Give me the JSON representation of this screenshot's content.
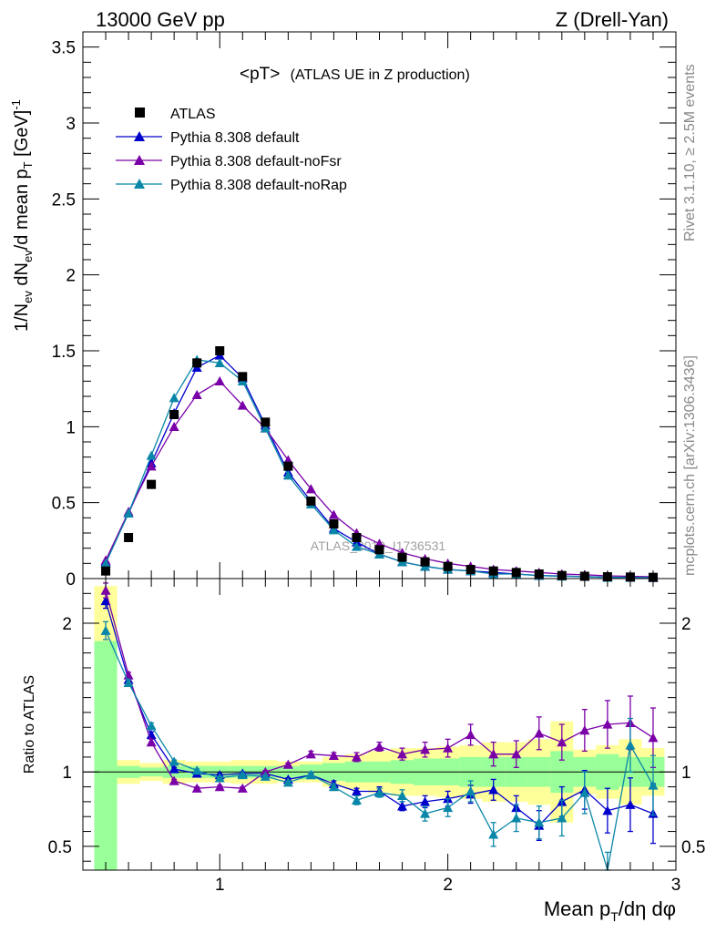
{
  "header": {
    "left": "13000 GeV pp",
    "right": "Z (Drell-Yan)"
  },
  "side": {
    "rivet": "Rivet 3.1.10, ≥ 2.5M events",
    "mcplots": "mcplots.cern.ch [arXiv:1306.3436]"
  },
  "watermark": "ATLAS_2019_I1736531",
  "colors": {
    "data": "#000000",
    "default": "#0000cc",
    "noFsr": "#7a00a8",
    "noRap": "#0a87a8",
    "band_stat": "#99ff99",
    "band_total": "#ffff99"
  },
  "chart_data": [
    {
      "type": "scatter",
      "panel": "main",
      "title": "<pT>",
      "title_suffix": "(ATLAS UE in Z production)",
      "ylabel": "1/N_ev dN_ev/d mean p_T [GeV]^-1",
      "xlim": [
        0.4,
        3.0
      ],
      "ylim": [
        0,
        3.6
      ],
      "yticks": [
        0,
        0.5,
        1,
        1.5,
        2,
        2.5,
        3,
        3.5
      ],
      "ytick_labels": [
        "0",
        "0.5",
        "1",
        "1.5",
        "2",
        "2.5",
        "3",
        "3.5"
      ],
      "x": [
        0.5,
        0.6,
        0.7,
        0.8,
        0.9,
        1.0,
        1.1,
        1.2,
        1.3,
        1.4,
        1.5,
        1.6,
        1.7,
        1.8,
        1.9,
        2.0,
        2.1,
        2.2,
        2.3,
        2.4,
        2.5,
        2.6,
        2.7,
        2.8,
        2.9
      ],
      "legend": {
        "data": "ATLAS",
        "default": "Pythia 8.308 default",
        "noFsr": "Pythia 8.308 default-noFsr",
        "noRap": "Pythia 8.308 default-noRap"
      },
      "series": [
        {
          "key": "data",
          "name": "ATLAS",
          "values": [
            0.05,
            0.27,
            0.62,
            1.08,
            1.42,
            1.5,
            1.33,
            1.03,
            0.74,
            0.51,
            0.36,
            0.27,
            0.19,
            0.14,
            0.11,
            0.08,
            0.06,
            0.05,
            0.04,
            0.03,
            0.02,
            0.015,
            0.012,
            0.01,
            0.008
          ]
        },
        {
          "key": "default",
          "name": "Pythia 8.308 default",
          "values": [
            0.11,
            0.43,
            0.76,
            1.09,
            1.39,
            1.47,
            1.32,
            1.01,
            0.7,
            0.51,
            0.33,
            0.24,
            0.16,
            0.11,
            0.08,
            0.06,
            0.05,
            0.04,
            0.03,
            0.02,
            0.017,
            0.013,
            0.009,
            0.008,
            0.006
          ]
        },
        {
          "key": "noFsr",
          "name": "Pythia 8.308 default-noFsr",
          "values": [
            0.12,
            0.44,
            0.74,
            1.0,
            1.21,
            1.3,
            1.14,
            0.99,
            0.78,
            0.59,
            0.42,
            0.3,
            0.23,
            0.17,
            0.13,
            0.1,
            0.08,
            0.06,
            0.05,
            0.04,
            0.03,
            0.025,
            0.018,
            0.015,
            0.012
          ]
        },
        {
          "key": "noRap",
          "name": "Pythia 8.308 default-noRap",
          "values": [
            0.1,
            0.43,
            0.81,
            1.19,
            1.44,
            1.42,
            1.3,
            0.99,
            0.68,
            0.49,
            0.32,
            0.21,
            0.16,
            0.11,
            0.08,
            0.06,
            0.05,
            0.03,
            0.03,
            0.02,
            0.015,
            0.013,
            0.007,
            0.008,
            0.006
          ]
        }
      ]
    },
    {
      "type": "scatter",
      "panel": "ratio",
      "ylabel": "Ratio to ATLAS",
      "xlabel": "Mean p_T/dη dφ",
      "xlim": [
        0.4,
        3.0
      ],
      "ylim": [
        0.34,
        2.3
      ],
      "xticks": [
        1,
        2,
        3
      ],
      "xtick_labels": [
        "1",
        "2",
        "3"
      ],
      "yticks": [
        0.5,
        1,
        2
      ],
      "ytick_labels": [
        "0.5",
        "1",
        "2"
      ],
      "x": [
        0.5,
        0.6,
        0.7,
        0.8,
        0.9,
        1.0,
        1.1,
        1.2,
        1.3,
        1.4,
        1.5,
        1.6,
        1.7,
        1.8,
        1.9,
        2.0,
        2.1,
        2.2,
        2.3,
        2.4,
        2.5,
        2.6,
        2.7,
        2.8,
        2.9
      ],
      "bands": {
        "total_low": [
          0.5,
          0.92,
          0.94,
          0.92,
          0.93,
          0.93,
          0.92,
          0.92,
          0.93,
          0.93,
          0.9,
          0.88,
          0.86,
          0.84,
          0.84,
          0.83,
          0.82,
          0.8,
          0.8,
          0.78,
          0.66,
          0.85,
          0.82,
          0.78,
          0.84
        ],
        "total_high": [
          2.25,
          1.08,
          1.06,
          1.08,
          1.07,
          1.07,
          1.08,
          1.08,
          1.07,
          1.07,
          1.1,
          1.12,
          1.14,
          1.16,
          1.16,
          1.17,
          1.18,
          1.2,
          1.2,
          1.22,
          1.34,
          1.15,
          1.18,
          1.22,
          1.16
        ],
        "stat_low": [
          0.3,
          0.96,
          0.97,
          0.96,
          0.96,
          0.96,
          0.96,
          0.96,
          0.96,
          0.95,
          0.94,
          0.93,
          0.93,
          0.92,
          0.91,
          0.91,
          0.9,
          0.9,
          0.9,
          0.9,
          0.86,
          0.9,
          0.88,
          0.9,
          0.9
        ],
        "stat_high": [
          1.88,
          1.04,
          1.03,
          1.04,
          1.04,
          1.04,
          1.04,
          1.04,
          1.04,
          1.05,
          1.06,
          1.07,
          1.07,
          1.08,
          1.09,
          1.09,
          1.1,
          1.1,
          1.1,
          1.1,
          1.14,
          1.1,
          1.12,
          1.1,
          1.1
        ]
      },
      "series": [
        {
          "key": "default",
          "name": "Pythia 8.308 default",
          "values": [
            2.15,
            1.62,
            1.25,
            1.02,
            0.99,
            0.98,
            0.99,
            0.99,
            0.95,
            0.98,
            0.92,
            0.87,
            0.87,
            0.77,
            0.8,
            0.82,
            0.85,
            0.88,
            0.76,
            0.64,
            0.8,
            0.88,
            0.74,
            0.78,
            0.72
          ],
          "err": [
            0.05,
            0.02,
            0.02,
            0.01,
            0.01,
            0.01,
            0.01,
            0.01,
            0.01,
            0.01,
            0.02,
            0.02,
            0.03,
            0.03,
            0.04,
            0.05,
            0.06,
            0.07,
            0.08,
            0.1,
            0.1,
            0.13,
            0.15,
            0.18,
            0.2
          ]
        },
        {
          "key": "noFsr",
          "name": "Pythia 8.308 default-noFsr",
          "values": [
            2.22,
            1.65,
            1.2,
            0.94,
            0.89,
            0.9,
            0.89,
            1.0,
            1.05,
            1.12,
            1.11,
            1.1,
            1.17,
            1.12,
            1.15,
            1.16,
            1.25,
            1.12,
            1.12,
            1.26,
            1.2,
            1.28,
            1.32,
            1.33,
            1.23
          ],
          "err": [
            0.05,
            0.02,
            0.02,
            0.01,
            0.01,
            0.01,
            0.01,
            0.01,
            0.01,
            0.02,
            0.02,
            0.03,
            0.03,
            0.04,
            0.05,
            0.06,
            0.07,
            0.08,
            0.09,
            0.11,
            0.12,
            0.14,
            0.16,
            0.18,
            0.2
          ]
        },
        {
          "key": "noRap",
          "name": "Pythia 8.308 default-noRap",
          "values": [
            1.95,
            1.6,
            1.31,
            1.07,
            1.01,
            0.96,
            0.98,
            0.97,
            0.93,
            0.98,
            0.9,
            0.81,
            0.86,
            0.84,
            0.72,
            0.76,
            0.87,
            0.58,
            0.69,
            0.66,
            0.69,
            0.86,
            0.3,
            1.18,
            0.91
          ],
          "err": [
            0.06,
            0.02,
            0.02,
            0.01,
            0.01,
            0.01,
            0.01,
            0.01,
            0.01,
            0.02,
            0.02,
            0.03,
            0.03,
            0.04,
            0.05,
            0.06,
            0.07,
            0.08,
            0.09,
            0.11,
            0.12,
            0.14,
            0.16,
            0.18,
            0.2
          ]
        }
      ]
    }
  ]
}
